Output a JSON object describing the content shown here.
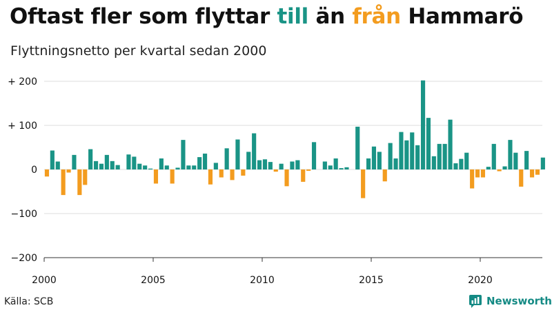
{
  "header": {
    "title_part1": "Oftast fler som flyttar ",
    "title_till": "till",
    "title_part2": " än ",
    "title_fran": "från",
    "title_part3": " Hammarö",
    "subtitle": "Flyttningsnetto per kvartal sedan 2000"
  },
  "footer": {
    "source": "Källa: SCB",
    "brand": "Newsworthy",
    "brand_icon": "chart-bubble-icon"
  },
  "colors": {
    "positive": "#1a9486",
    "negative": "#f39c1f",
    "brand": "#148a84",
    "grid": "#dddddd",
    "axis": "#333333"
  },
  "chart_data": {
    "type": "bar",
    "ylim": [
      -200,
      200
    ],
    "y_ticks": [
      200,
      100,
      0,
      -100,
      -200
    ],
    "y_tick_labels": [
      "+ 200",
      "+ 100",
      "0",
      "−100",
      "−200"
    ],
    "x_ticks": [
      2000,
      2005,
      2010,
      2015,
      2020
    ],
    "x_tick_labels": [
      "2000",
      "2005",
      "2010",
      "2015",
      "2020"
    ],
    "x_start": 2000,
    "periods_per_year": 4,
    "grid": true,
    "values": [
      -16,
      43,
      18,
      -58,
      -7,
      33,
      -58,
      -35,
      46,
      19,
      13,
      33,
      19,
      10,
      0,
      34,
      29,
      13,
      9,
      2,
      -32,
      25,
      9,
      -32,
      4,
      67,
      9,
      9,
      28,
      36,
      -34,
      15,
      -18,
      48,
      -24,
      68,
      -14,
      40,
      82,
      21,
      23,
      17,
      -5,
      13,
      -38,
      18,
      21,
      -28,
      -3,
      62,
      0,
      18,
      9,
      25,
      3,
      5,
      0,
      97,
      -65,
      25,
      52,
      40,
      -27,
      60,
      25,
      85,
      66,
      84,
      55,
      202,
      117,
      30,
      58,
      58,
      113,
      14,
      24,
      38,
      -43,
      -18,
      -18,
      6,
      58,
      -4,
      7,
      67,
      38,
      -39,
      42,
      -18,
      -12,
      27
    ]
  }
}
